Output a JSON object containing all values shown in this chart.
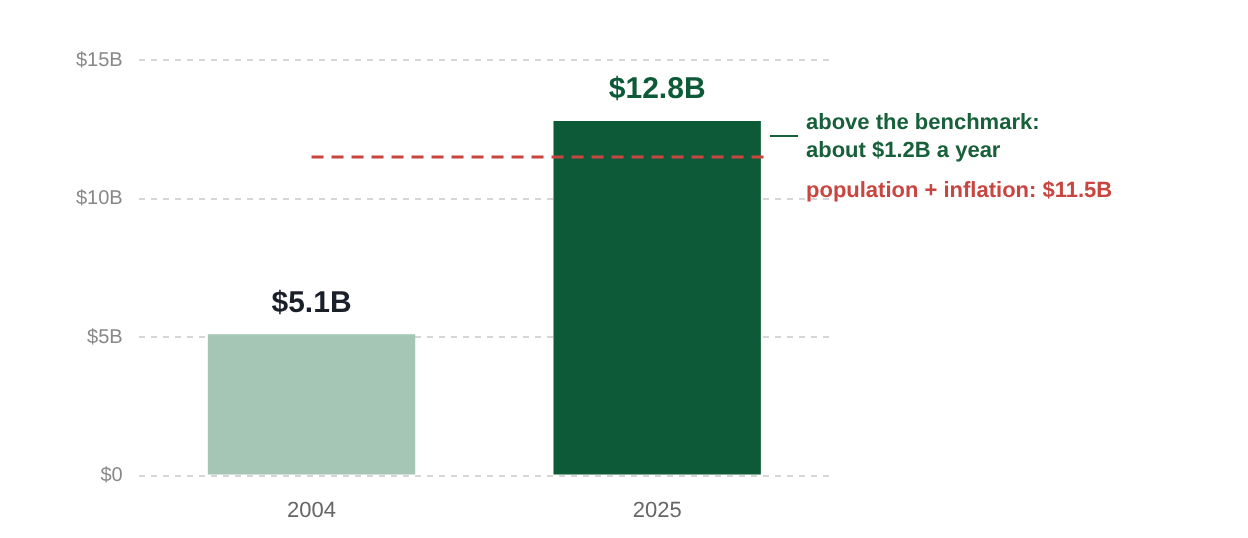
{
  "chart_data": {
    "type": "bar",
    "categories": [
      "2004",
      "2025"
    ],
    "values": [
      5.1,
      12.8
    ],
    "colors": [
      "#a6c6b5",
      "#0d5a38"
    ],
    "value_labels": [
      "$5.1B",
      "$12.8B"
    ],
    "ylim": [
      0,
      15
    ],
    "yticks": [
      {
        "value": 0,
        "label": "$0"
      },
      {
        "value": 5,
        "label": "$5B"
      },
      {
        "value": 10,
        "label": "$10B"
      },
      {
        "value": 15,
        "label": "$15B"
      }
    ],
    "grid": "y",
    "legend": false,
    "ref_lines": [
      {
        "axis": "y",
        "value": 11.5,
        "label": "population + inflation: $11.5B",
        "color": "#c9453f",
        "line_style": "dashed"
      }
    ],
    "annotations": [
      "above the benchmark: about $1.2B a year"
    ]
  }
}
